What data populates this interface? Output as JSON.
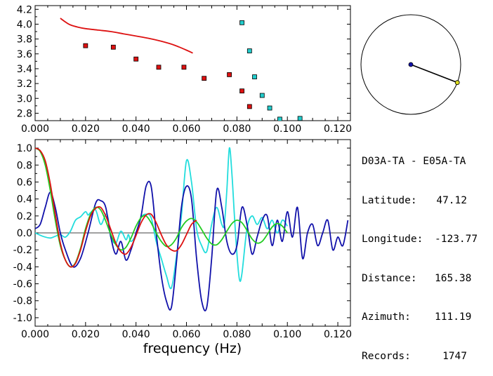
{
  "chart_data": [
    {
      "type": "scatter",
      "panel": "top",
      "xlim": [
        0.0,
        0.125
      ],
      "ylim": [
        2.7,
        4.25
      ],
      "x_ticks": [
        "0.000",
        "0.020",
        "0.040",
        "0.060",
        "0.080",
        "0.100",
        "0.120"
      ],
      "y_ticks": [
        "2.8",
        "3.0",
        "3.2",
        "3.4",
        "3.6",
        "3.8",
        "4.0",
        "4.2"
      ],
      "grid": false,
      "series": [
        {
          "kind": "line",
          "color": "#dd1111",
          "x": [
            0.01,
            0.012,
            0.014,
            0.017,
            0.02,
            0.025,
            0.03,
            0.035,
            0.04,
            0.045,
            0.05,
            0.055,
            0.06,
            0.0625
          ],
          "y": [
            4.08,
            4.03,
            3.99,
            3.96,
            3.94,
            3.92,
            3.9,
            3.87,
            3.84,
            3.81,
            3.77,
            3.72,
            3.65,
            3.61
          ]
        },
        {
          "kind": "markers",
          "color": "#dd1111",
          "x": [
            0.02,
            0.031,
            0.04,
            0.049,
            0.059,
            0.067,
            0.077,
            0.082,
            0.085
          ],
          "y": [
            3.71,
            3.69,
            3.53,
            3.42,
            3.42,
            3.27,
            3.32,
            3.1,
            2.89
          ]
        },
        {
          "kind": "markers",
          "color": "#22cccc",
          "x": [
            0.082,
            0.085,
            0.087,
            0.09,
            0.093,
            0.097,
            0.105
          ],
          "y": [
            4.02,
            3.64,
            3.29,
            3.04,
            2.87,
            2.72,
            2.73
          ]
        }
      ]
    },
    {
      "type": "line",
      "panel": "bottom",
      "xlim": [
        0.0,
        0.125
      ],
      "ylim": [
        -1.1,
        1.1
      ],
      "x_ticks": [
        "0.000",
        "0.020",
        "0.040",
        "0.060",
        "0.080",
        "0.100",
        "0.120"
      ],
      "y_ticks": [
        "1.0",
        "0.8",
        "0.6",
        "0.4",
        "0.2",
        "0.0",
        "-0.2",
        "-0.4",
        "-0.6",
        "-0.8",
        "-1.0"
      ],
      "xlabel": "frequency (Hz)",
      "grid": false,
      "zero_line": true,
      "series": [
        {
          "color": "#22dddd",
          "x": [
            0.0,
            0.003,
            0.006,
            0.008,
            0.01,
            0.012,
            0.014,
            0.016,
            0.018,
            0.02,
            0.021,
            0.022,
            0.024,
            0.026,
            0.028,
            0.029,
            0.03,
            0.032,
            0.034,
            0.036,
            0.037,
            0.038,
            0.04,
            0.042,
            0.044,
            0.046,
            0.048,
            0.05,
            0.052,
            0.054,
            0.056,
            0.058,
            0.06,
            0.062,
            0.064,
            0.066,
            0.068,
            0.07,
            0.072,
            0.074,
            0.075,
            0.076,
            0.077,
            0.078,
            0.079,
            0.08,
            0.081,
            0.082,
            0.084,
            0.086,
            0.088,
            0.09,
            0.092,
            0.094,
            0.096,
            0.098,
            0.1
          ],
          "y": [
            0.0,
            -0.04,
            -0.06,
            -0.04,
            -0.02,
            -0.05,
            0.02,
            0.15,
            0.19,
            0.25,
            0.21,
            0.24,
            0.27,
            0.1,
            0.22,
            0.16,
            -0.05,
            -0.12,
            0.02,
            -0.08,
            -0.02,
            -0.1,
            -0.02,
            0.18,
            0.22,
            0.18,
            -0.1,
            -0.3,
            -0.5,
            -0.65,
            -0.28,
            0.2,
            0.85,
            0.6,
            0.05,
            -0.15,
            -0.22,
            0.1,
            0.3,
            0.1,
            0.1,
            0.5,
            1.0,
            0.7,
            0.2,
            -0.25,
            -0.55,
            -0.48,
            0.05,
            0.2,
            0.1,
            0.18,
            0.05,
            0.15,
            0.0,
            0.15,
            0.08
          ]
        },
        {
          "color": "#1111aa",
          "x": [
            0.0,
            0.002,
            0.004,
            0.006,
            0.008,
            0.01,
            0.012,
            0.015,
            0.018,
            0.021,
            0.024,
            0.026,
            0.028,
            0.03,
            0.032,
            0.034,
            0.036,
            0.038,
            0.04,
            0.042,
            0.044,
            0.046,
            0.048,
            0.05,
            0.052,
            0.054,
            0.056,
            0.058,
            0.06,
            0.062,
            0.064,
            0.066,
            0.068,
            0.07,
            0.072,
            0.074,
            0.076,
            0.078,
            0.08,
            0.082,
            0.084,
            0.086,
            0.088,
            0.09,
            0.092,
            0.094,
            0.096,
            0.098,
            0.1,
            0.102,
            0.104,
            0.106,
            0.108,
            0.11,
            0.112,
            0.114,
            0.116,
            0.118,
            0.12,
            0.122,
            0.124
          ],
          "y": [
            0.05,
            0.1,
            0.3,
            0.48,
            0.3,
            0.0,
            -0.2,
            -0.4,
            -0.3,
            0.0,
            0.35,
            0.38,
            0.3,
            -0.05,
            -0.25,
            -0.1,
            -0.32,
            -0.2,
            0.0,
            0.2,
            0.55,
            0.55,
            0.0,
            -0.5,
            -0.8,
            -0.88,
            -0.35,
            0.3,
            0.55,
            0.4,
            -0.3,
            -0.8,
            -0.88,
            -0.3,
            0.5,
            0.3,
            -0.1,
            -0.25,
            -0.15,
            0.3,
            0.1,
            -0.25,
            -0.05,
            0.15,
            0.2,
            -0.15,
            0.15,
            -0.1,
            0.25,
            -0.05,
            0.3,
            -0.3,
            0.0,
            0.1,
            -0.15,
            0.0,
            0.15,
            -0.2,
            -0.05,
            -0.15,
            0.15
          ]
        },
        {
          "color": "#22cc22",
          "x": [
            0.0,
            0.002,
            0.004,
            0.006,
            0.008,
            0.01,
            0.012,
            0.014,
            0.016,
            0.018,
            0.02,
            0.022,
            0.024,
            0.026,
            0.028,
            0.03,
            0.032,
            0.034,
            0.036,
            0.038,
            0.04,
            0.042,
            0.044,
            0.046,
            0.048,
            0.05,
            0.052,
            0.054,
            0.056,
            0.058,
            0.06,
            0.062,
            0.064,
            0.066,
            0.068,
            0.07,
            0.072,
            0.074,
            0.076,
            0.078,
            0.08,
            0.082,
            0.084,
            0.086,
            0.088,
            0.09,
            0.092,
            0.094,
            0.096,
            0.098,
            0.1
          ],
          "y": [
            1.0,
            0.96,
            0.8,
            0.5,
            0.15,
            -0.15,
            -0.32,
            -0.4,
            -0.35,
            -0.18,
            0.05,
            0.22,
            0.3,
            0.27,
            0.14,
            -0.02,
            -0.14,
            -0.2,
            -0.17,
            -0.06,
            0.08,
            0.18,
            0.2,
            0.12,
            0.0,
            -0.1,
            -0.16,
            -0.14,
            -0.06,
            0.06,
            0.14,
            0.17,
            0.13,
            0.04,
            -0.06,
            -0.13,
            -0.14,
            -0.08,
            0.02,
            0.11,
            0.15,
            0.12,
            0.03,
            -0.07,
            -0.12,
            -0.1,
            -0.02,
            0.07,
            0.11,
            0.08,
            0.0
          ]
        },
        {
          "color": "#dd1111",
          "x": [
            0.0,
            0.002,
            0.004,
            0.006,
            0.008,
            0.01,
            0.012,
            0.014,
            0.016,
            0.018,
            0.02,
            0.022,
            0.024,
            0.026,
            0.028,
            0.03,
            0.032,
            0.034,
            0.036,
            0.038,
            0.04,
            0.042,
            0.044,
            0.046,
            0.048,
            0.05,
            0.052,
            0.054,
            0.056,
            0.058,
            0.06,
            0.062,
            0.064
          ],
          "y": [
            1.0,
            0.97,
            0.85,
            0.58,
            0.22,
            -0.12,
            -0.32,
            -0.4,
            -0.36,
            -0.2,
            0.02,
            0.2,
            0.29,
            0.3,
            0.2,
            0.04,
            -0.12,
            -0.22,
            -0.25,
            -0.17,
            -0.03,
            0.12,
            0.21,
            0.22,
            0.12,
            -0.02,
            -0.14,
            -0.2,
            -0.21,
            -0.14,
            -0.02,
            0.1,
            0.15
          ]
        }
      ]
    }
  ],
  "compass": {
    "azimuth_deg": 111.19,
    "needle_color": "#000000",
    "center_dot_color": "#1111aa",
    "tip_dot_color": "#dddd22"
  },
  "station": {
    "title": "D03A-TA - E05A-TA",
    "rows": [
      {
        "label": "Latitude:",
        "value": "47.12"
      },
      {
        "label": "Longitude:",
        "value": "-123.77"
      },
      {
        "label": "Distance:",
        "value": "165.38"
      },
      {
        "label": "Azimuth:",
        "value": "111.19"
      },
      {
        "label": "Records:",
        "value": "1747"
      }
    ]
  }
}
